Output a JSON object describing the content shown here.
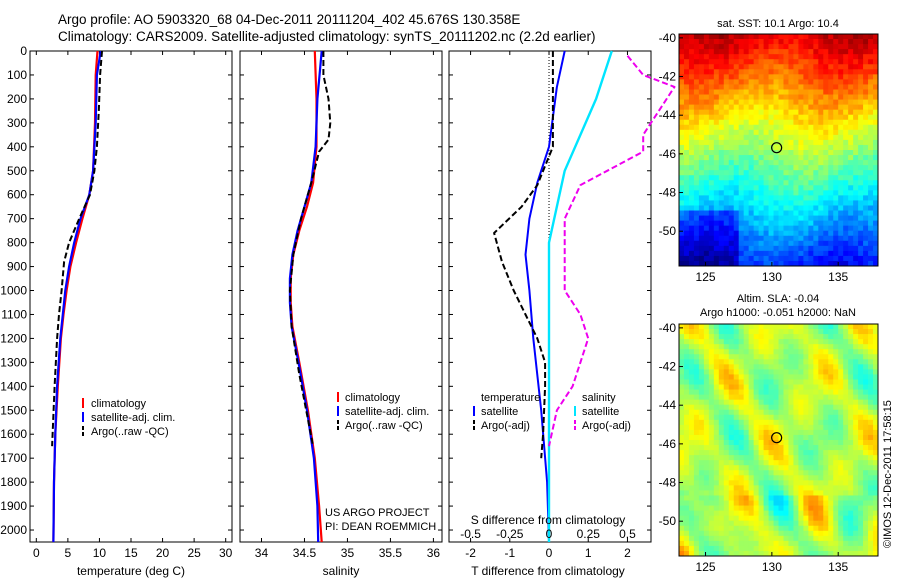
{
  "header": {
    "line1": "Argo profile: AO 5903320_68 04-Dec-2011 20111204_402 45.676S 130.358E",
    "line2": "Climatology: CARS2009. Satellite-adjusted climatology: synTS_20111202.nc (2.2d earlier)"
  },
  "colors": {
    "climatology": "#ff0000",
    "satellite": "#0000ff",
    "argo": "#000000",
    "sal_satellite": "#00e5ff",
    "sal_argo": "#ee00ee"
  },
  "chart_data": [
    {
      "id": "temperature",
      "type": "line",
      "xlabel": "temperature (deg C)",
      "ylabel": "",
      "xlim": [
        -1,
        31
      ],
      "ylim": [
        0,
        2050
      ],
      "xticks": [
        0,
        5,
        10,
        15,
        20,
        25,
        30
      ],
      "yticks": [
        0,
        100,
        200,
        300,
        400,
        500,
        600,
        700,
        800,
        900,
        1000,
        1100,
        1200,
        1300,
        1400,
        1500,
        1600,
        1700,
        1800,
        1900,
        2000
      ],
      "legend": [
        "climatology",
        "satellite-adj. clim.",
        "Argo(..raw -QC)"
      ],
      "series": [
        {
          "name": "climatology",
          "depth": [
            0,
            100,
            300,
            500,
            600,
            700,
            800,
            900,
            1000,
            1100,
            1200,
            1400,
            1600,
            1800,
            2050
          ],
          "values": [
            9.7,
            9.4,
            9.3,
            9.0,
            8.4,
            7.3,
            6.3,
            5.4,
            4.8,
            4.3,
            3.9,
            3.4,
            3.0,
            2.8,
            2.7
          ]
        },
        {
          "name": "satellite-adj. clim.",
          "depth": [
            0,
            100,
            300,
            500,
            600,
            700,
            800,
            900,
            1000,
            1100,
            1200,
            1400,
            1600,
            1800,
            2050
          ],
          "values": [
            10.2,
            9.6,
            9.4,
            9.0,
            8.4,
            7.0,
            6.0,
            5.2,
            4.6,
            4.2,
            3.8,
            3.3,
            3.0,
            2.8,
            2.7
          ]
        },
        {
          "name": "Argo(..raw -QC)",
          "depth": [
            0,
            100,
            250,
            400,
            500,
            600,
            700,
            800,
            880,
            1000,
            1100,
            1200,
            1400,
            1650
          ],
          "values": [
            10.4,
            10.1,
            9.9,
            9.6,
            9.2,
            8.5,
            6.8,
            5.2,
            4.4,
            4.0,
            3.6,
            3.3,
            2.9,
            2.5
          ]
        }
      ]
    },
    {
      "id": "salinity",
      "type": "line",
      "xlabel": "salinity",
      "ylabel": "",
      "xlim": [
        33.75,
        36.1
      ],
      "ylim": [
        0,
        2050
      ],
      "xticks": [
        34,
        34.5,
        35,
        35.5,
        36
      ],
      "legend": [
        "climatology",
        "satellite-adj. clim.",
        "Argo(..raw -QC)"
      ],
      "annotation": [
        "US ARGO PROJECT",
        "PI: DEAN ROEMMICH"
      ],
      "series": [
        {
          "name": "climatology",
          "depth": [
            0,
            200,
            400,
            550,
            650,
            750,
            850,
            950,
            1050,
            1150,
            1300,
            1500,
            1700,
            1900,
            2050
          ],
          "values": [
            34.62,
            34.64,
            34.64,
            34.6,
            34.53,
            34.44,
            34.37,
            34.34,
            34.34,
            34.36,
            34.44,
            34.54,
            34.62,
            34.67,
            34.7
          ]
        },
        {
          "name": "satellite-adj. clim.",
          "depth": [
            0,
            200,
            400,
            550,
            650,
            750,
            850,
            950,
            1050,
            1150,
            1300,
            1500,
            1700,
            1900,
            2050
          ],
          "values": [
            34.7,
            34.65,
            34.63,
            34.58,
            34.5,
            34.42,
            34.36,
            34.33,
            34.33,
            34.35,
            34.43,
            34.53,
            34.61,
            34.65,
            34.66
          ]
        },
        {
          "name": "Argo(..raw -QC)",
          "depth": [
            0,
            100,
            200,
            300,
            370,
            420,
            550,
            700,
            850,
            1000,
            1150,
            1350,
            1500,
            1650
          ],
          "values": [
            34.72,
            34.72,
            34.78,
            34.8,
            34.78,
            34.67,
            34.58,
            34.46,
            34.37,
            34.33,
            34.35,
            34.44,
            34.52,
            34.6
          ]
        }
      ]
    },
    {
      "id": "difference",
      "type": "line",
      "xlabel": "T difference from climatology",
      "xlabel_top": "S difference from climatology",
      "xlim": [
        -2.55,
        2.6
      ],
      "ylim": [
        0,
        2050
      ],
      "xticks": [
        -2,
        -1,
        0,
        1,
        2
      ],
      "xticks_s": [
        "-0.5",
        "-0.25",
        "0",
        "0.25",
        "0.5"
      ],
      "xticks_s_values": [
        -0.5,
        -0.25,
        0,
        0.25,
        0.5
      ],
      "legend_t_header": "temperature",
      "legend_s_header": "salinity",
      "legend_t": [
        "satellite",
        "Argo(-adj)"
      ],
      "legend_s": [
        "satellite",
        "Argo(-adj)"
      ],
      "series": [
        {
          "name": "T satellite",
          "depth": [
            0,
            150,
            400,
            550,
            700,
            850,
            1000,
            1200,
            1500,
            1800,
            2050
          ],
          "values": [
            0.4,
            0.2,
            0.0,
            -0.3,
            -0.5,
            -0.6,
            -0.5,
            -0.4,
            -0.2,
            -0.05,
            0.0
          ]
        },
        {
          "name": "T Argo(-adj)",
          "depth": [
            0,
            200,
            400,
            560,
            650,
            760,
            880,
            1000,
            1100,
            1200,
            1300,
            1400,
            1600,
            1700
          ],
          "values": [
            0.1,
            0.1,
            0.1,
            -0.3,
            -0.7,
            -1.4,
            -1.2,
            -0.9,
            -0.6,
            -0.3,
            -0.1,
            -0.1,
            -0.15,
            -0.2
          ]
        },
        {
          "name": "S satellite",
          "depth": [
            0,
            200,
            500,
            800,
            1200,
            1600,
            2050
          ],
          "values": [
            0.4,
            0.3,
            0.1,
            0.0,
            0.0,
            0.0,
            0.0
          ]
        },
        {
          "name": "S Argo(-adj)",
          "depth": [
            20,
            100,
            150,
            250,
            350,
            420,
            560,
            700,
            900,
            1000,
            1100,
            1200,
            1300,
            1400,
            1500,
            1650
          ],
          "values": [
            0.5,
            0.6,
            0.8,
            0.7,
            0.6,
            0.6,
            0.2,
            0.1,
            0.1,
            0.1,
            0.2,
            0.25,
            0.2,
            0.15,
            0.05,
            0.0
          ]
        }
      ]
    }
  ],
  "map_top": {
    "title": "sat. SST: 10.1  Argo: 10.4",
    "xticks": [
      "125",
      "130",
      "135"
    ],
    "yticks": [
      "-40",
      "-42",
      "-44",
      "-46",
      "-48",
      "-50"
    ],
    "lon_range": [
      123,
      138
    ],
    "lat_range": [
      -51.8,
      -39.8
    ],
    "marker": {
      "lon": 130.36,
      "lat": -45.68
    }
  },
  "map_bottom": {
    "title1": "Altim. SLA: -0.04",
    "title2": "Argo h1000: -0.051 h2000: NaN",
    "xticks": [
      "125",
      "130",
      "135"
    ],
    "yticks": [
      "-40",
      "-42",
      "-44",
      "-46",
      "-48",
      "-50"
    ],
    "lon_range": [
      123,
      138
    ],
    "lat_range": [
      -51.8,
      -39.8
    ],
    "marker": {
      "lon": 130.36,
      "lat": -45.68
    }
  },
  "footer": {
    "credit": "©IMOS 12-Dec-2011 17:58:15"
  }
}
